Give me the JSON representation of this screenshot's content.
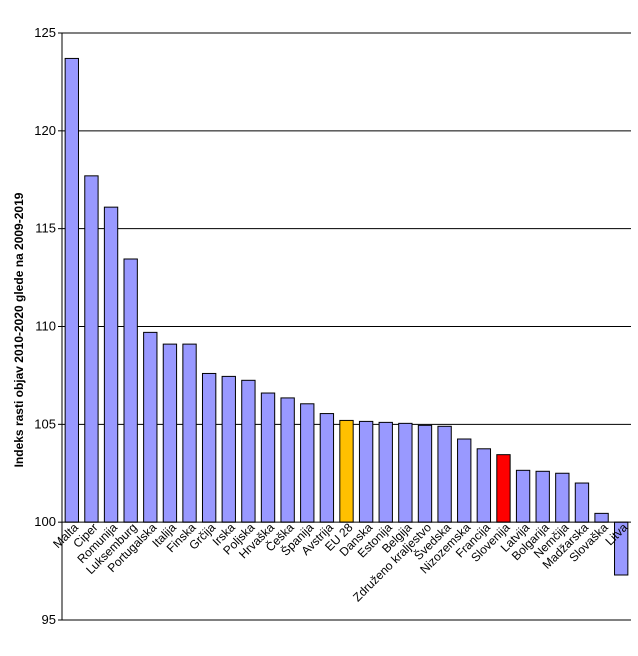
{
  "chart_data": {
    "type": "bar",
    "title": "",
    "xlabel": "",
    "ylabel": "Indeks rasti objav 2010-2020 glede na 2009-2019",
    "ylim": [
      95,
      125
    ],
    "yticks": [
      95,
      100,
      105,
      110,
      115,
      120,
      125
    ],
    "baseline": 100,
    "grid": true,
    "legend": "none",
    "categories": [
      "Malta",
      "Ciper",
      "Romunija",
      "Luksemburg",
      "Portugalska",
      "Italija",
      "Finska",
      "Grčija",
      "Irska",
      "Poljska",
      "Hrvaška",
      "Češka",
      "Španija",
      "Avstrija",
      "EU 28",
      "Danska",
      "Estonija",
      "Belgija",
      "Združeno kraljestvo",
      "Švedska",
      "Nizozemska",
      "Francija",
      "Slovenija",
      "Latvija",
      "Bolgarija",
      "Nemčija",
      "Madžarska",
      "Slovaška",
      "Litva"
    ],
    "values": [
      123.7,
      117.7,
      116.1,
      113.45,
      109.7,
      109.1,
      109.1,
      107.6,
      107.45,
      107.25,
      106.6,
      106.35,
      106.05,
      105.55,
      105.2,
      105.15,
      105.1,
      105.05,
      104.95,
      104.9,
      104.25,
      103.75,
      103.45,
      102.65,
      102.6,
      102.5,
      102.0,
      100.45,
      97.3
    ],
    "highlights": {
      "EU 28": "#ffc000",
      "Slovenija": "#ff0000"
    },
    "colors": {
      "default_bar": "#9999ff",
      "bar_stroke": "#000000",
      "grid": "#000000"
    }
  }
}
